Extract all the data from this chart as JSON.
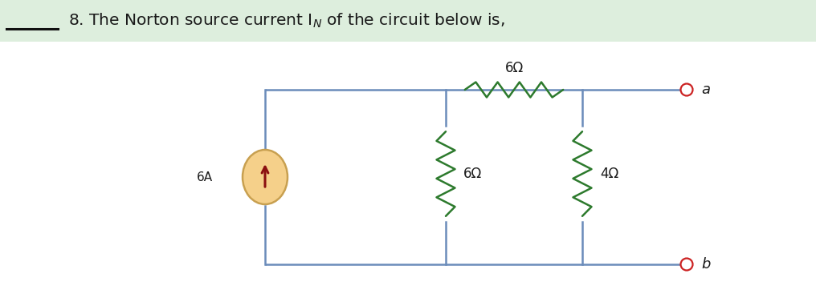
{
  "title_text": "8. The Norton source current I",
  "title_subscript": "N",
  "title_suffix": " of the circuit below is,",
  "title_highlight_color": "#ddeedd",
  "background_color": "#ffffff",
  "wire_color": "#6b8cba",
  "resistor_color": "#2d7a2d",
  "current_source_fill": "#f5d08a",
  "current_source_edge": "#c8a050",
  "current_source_arrow": "#8b1010",
  "terminal_color": "#cc2222",
  "label_color": "#1a1a1a",
  "underline_color": "#111111",
  "fig_width": 10.16,
  "fig_height": 3.82,
  "dpi": 100
}
